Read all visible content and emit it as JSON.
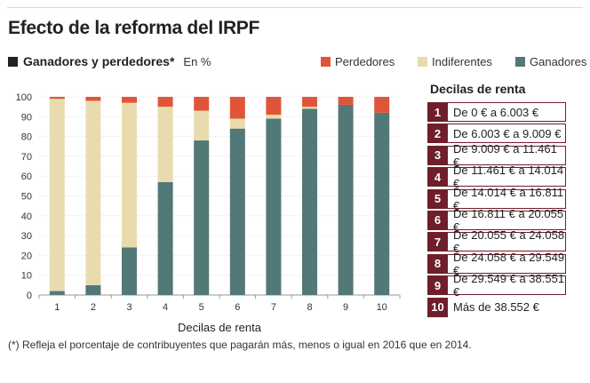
{
  "header": {
    "title": "Efecto de la reforma del IRPF",
    "subtitle": "Ganadores y perdedores*",
    "unit": "En %"
  },
  "legend": [
    {
      "label": "Perdedores",
      "color": "#e0553a"
    },
    {
      "label": "Indiferentes",
      "color": "#e8dcae"
    },
    {
      "label": "Ganadores",
      "color": "#527878"
    }
  ],
  "chart_data": {
    "type": "bar",
    "stacked": true,
    "categories": [
      "1",
      "2",
      "3",
      "4",
      "5",
      "6",
      "7",
      "8",
      "9",
      "10"
    ],
    "series": [
      {
        "name": "Ganadores",
        "color": "#527878",
        "values": [
          2,
          5,
          24,
          57,
          78,
          84,
          89,
          94,
          96,
          92
        ]
      },
      {
        "name": "Indiferentes",
        "color": "#e8dcae",
        "values": [
          97,
          93,
          73,
          38,
          15,
          5,
          2,
          1,
          0,
          0
        ]
      },
      {
        "name": "Perdedores",
        "color": "#e0553a",
        "values": [
          1,
          2,
          3,
          5,
          7,
          11,
          9,
          5,
          4,
          8
        ]
      }
    ],
    "yticks": [
      0,
      10,
      20,
      30,
      40,
      50,
      60,
      70,
      80,
      90,
      100
    ],
    "ylim": [
      0,
      100
    ],
    "xlabel": "Decilas de renta",
    "grid": true,
    "legend_position": "top-right"
  },
  "deciles": {
    "title": "Decilas de renta",
    "items": [
      {
        "num": "1",
        "label": "De 0 € a 6.003 €"
      },
      {
        "num": "2",
        "label": "De 6.003 € a 9.009 €"
      },
      {
        "num": "3",
        "label": "De 9.009 € a 11.461 €"
      },
      {
        "num": "4",
        "label": "De 11.461 € a 14.014 €"
      },
      {
        "num": "5",
        "label": "De 14.014 € a 16.811 €"
      },
      {
        "num": "6",
        "label": "De 16.811 € a 20.055 €"
      },
      {
        "num": "7",
        "label": "De 20.055 € a 24.058 €"
      },
      {
        "num": "8",
        "label": "De 24.058 € a 29.549 €"
      },
      {
        "num": "9",
        "label": "De 29.549 € a 38.551 €"
      },
      {
        "num": "10",
        "label": "Más de 38.552 €"
      }
    ]
  },
  "footnote": "(*) Refleja el porcentaje de contribuyentes que pagarán más, menos o igual en 2016 que en 2014."
}
